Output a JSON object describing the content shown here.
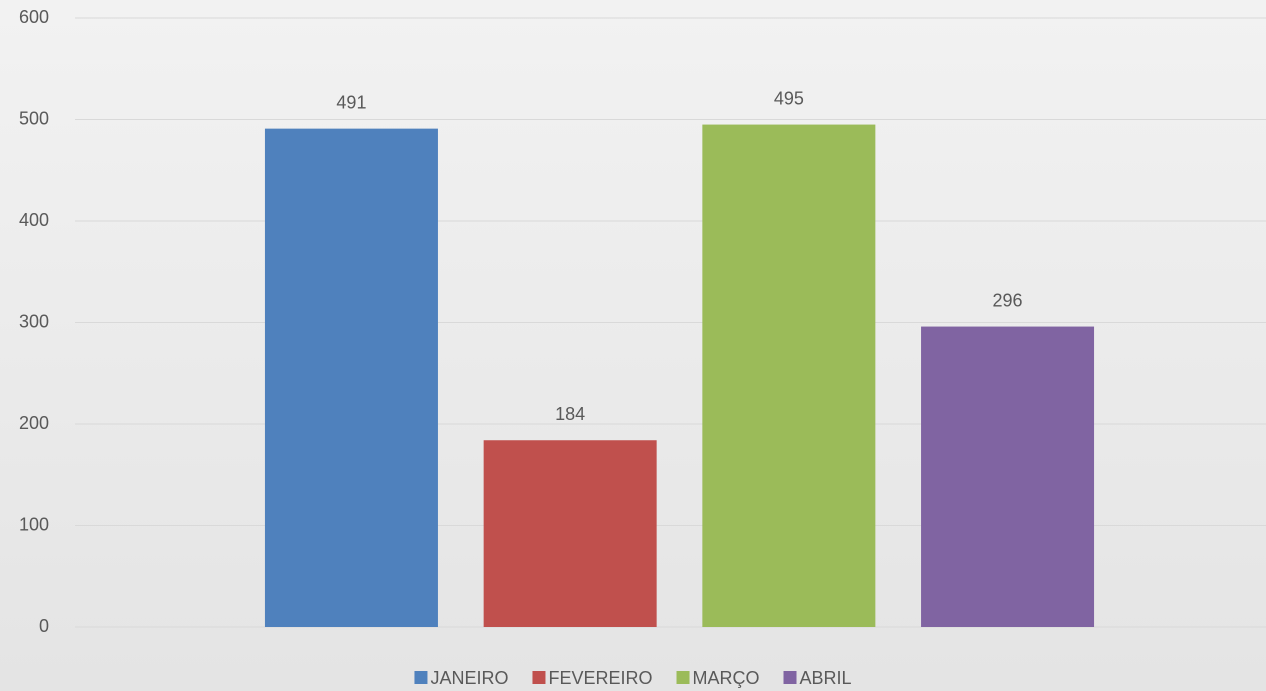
{
  "chart_data": {
    "type": "bar",
    "categories": [
      null
    ],
    "series": [
      {
        "name": "JANEIRO",
        "color": "#4f81bd",
        "values": [
          491
        ]
      },
      {
        "name": "FEVEREIRO",
        "color": "#c0504d",
        "values": [
          184
        ]
      },
      {
        "name": "MARÇO",
        "color": "#9bbb59",
        "values": [
          495
        ]
      },
      {
        "name": "ABRIL",
        "color": "#8064a2",
        "values": [
          296
        ]
      }
    ],
    "ylim": [
      0,
      600
    ],
    "yticks": [
      0,
      100,
      200,
      300,
      400,
      500,
      600
    ],
    "grid": true,
    "legend": "bottom"
  }
}
